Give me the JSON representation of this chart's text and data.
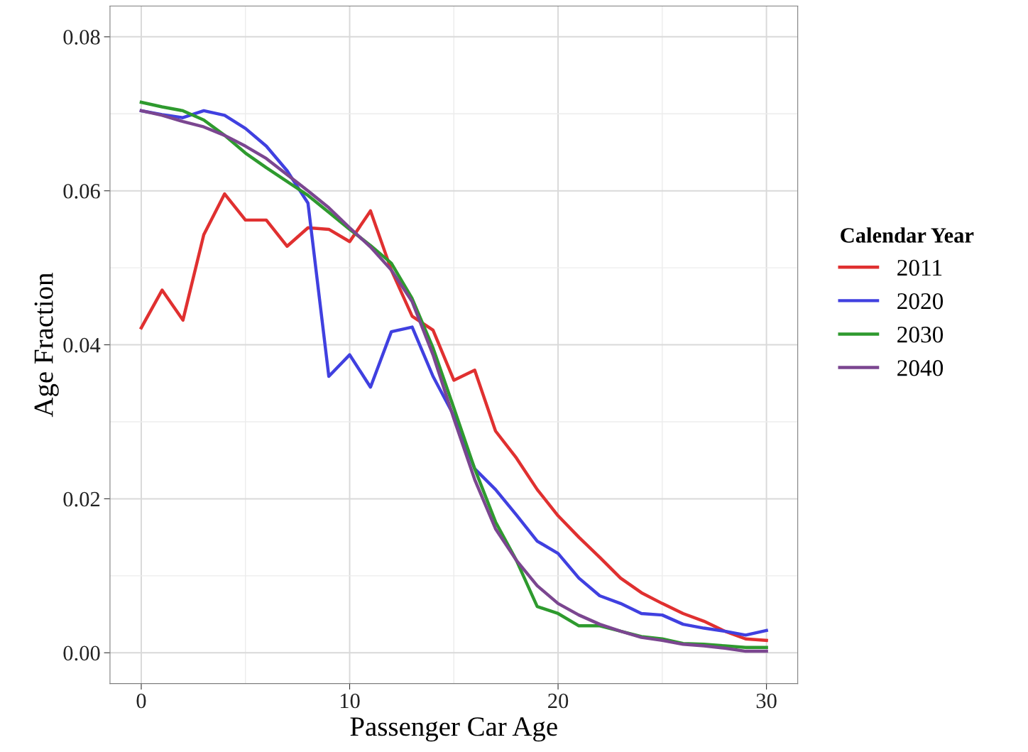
{
  "chart_data": {
    "type": "line",
    "xlabel": "Passenger Car Age",
    "ylabel": "Age Fraction",
    "legend_title": "Calendar Year",
    "x": [
      0,
      1,
      2,
      3,
      4,
      5,
      6,
      7,
      8,
      9,
      10,
      11,
      12,
      13,
      14,
      15,
      16,
      17,
      18,
      19,
      20,
      21,
      22,
      23,
      24,
      25,
      26,
      27,
      28,
      29,
      30
    ],
    "series": [
      {
        "name": "2011",
        "color": "#e03030",
        "values": [
          0.0422,
          0.0471,
          0.0432,
          0.0543,
          0.0596,
          0.0562,
          0.0562,
          0.0528,
          0.0552,
          0.055,
          0.0534,
          0.0574,
          0.0497,
          0.0437,
          0.0419,
          0.0354,
          0.0367,
          0.0288,
          0.0253,
          0.0212,
          0.0178,
          0.015,
          0.0124,
          0.0097,
          0.0078,
          0.0064,
          0.0051,
          0.0041,
          0.0028,
          0.0018,
          0.0016
        ]
      },
      {
        "name": "2020",
        "color": "#4040e0",
        "values": [
          0.0704,
          0.0699,
          0.0695,
          0.0704,
          0.0698,
          0.0681,
          0.0658,
          0.0626,
          0.0584,
          0.0359,
          0.0387,
          0.0345,
          0.0417,
          0.0423,
          0.0359,
          0.0308,
          0.0239,
          0.0212,
          0.0179,
          0.0145,
          0.0129,
          0.0097,
          0.0074,
          0.0064,
          0.0051,
          0.0049,
          0.0037,
          0.0032,
          0.0028,
          0.0023,
          0.0029
        ]
      },
      {
        "name": "2030",
        "color": "#2e9a2e",
        "values": [
          0.0715,
          0.0709,
          0.0704,
          0.0692,
          0.0672,
          0.0649,
          0.063,
          0.0612,
          0.0594,
          0.0572,
          0.055,
          0.0529,
          0.0506,
          0.046,
          0.0396,
          0.0318,
          0.0239,
          0.017,
          0.012,
          0.006,
          0.0051,
          0.0035,
          0.0035,
          0.0028,
          0.0021,
          0.0018,
          0.0012,
          0.0011,
          0.0009,
          0.0007,
          0.0007
        ]
      },
      {
        "name": "2040",
        "color": "#7b4690",
        "values": [
          0.0704,
          0.0698,
          0.069,
          0.0683,
          0.0672,
          0.0658,
          0.0642,
          0.0621,
          0.06,
          0.0578,
          0.0552,
          0.0527,
          0.0497,
          0.0456,
          0.0387,
          0.0304,
          0.0225,
          0.0161,
          0.012,
          0.0087,
          0.0064,
          0.0049,
          0.0037,
          0.0028,
          0.002,
          0.0016,
          0.0011,
          0.0009,
          0.0006,
          0.0002,
          0.0002
        ]
      }
    ],
    "xlim": [
      -1.5,
      31.5
    ],
    "ylim": [
      -0.004,
      0.084
    ],
    "xticks": [
      0,
      {
        "value": 5,
        "label": null
      },
      10,
      {
        "value": 15,
        "label": null
      },
      20,
      {
        "value": 25,
        "label": null
      },
      30
    ],
    "yticks": [
      {
        "value": 0,
        "label": "0.00"
      },
      {
        "value": 0.01,
        "label": null
      },
      {
        "value": 0.02,
        "label": "0.02"
      },
      {
        "value": 0.03,
        "label": null
      },
      {
        "value": 0.04,
        "label": "0.04"
      },
      {
        "value": 0.05,
        "label": null
      },
      {
        "value": 0.06,
        "label": "0.06"
      },
      {
        "value": 0.07,
        "label": null
      },
      {
        "value": 0.08,
        "label": "0.08"
      }
    ],
    "grid": true,
    "legend": "right",
    "marker": "none",
    "line_style": "solid"
  }
}
